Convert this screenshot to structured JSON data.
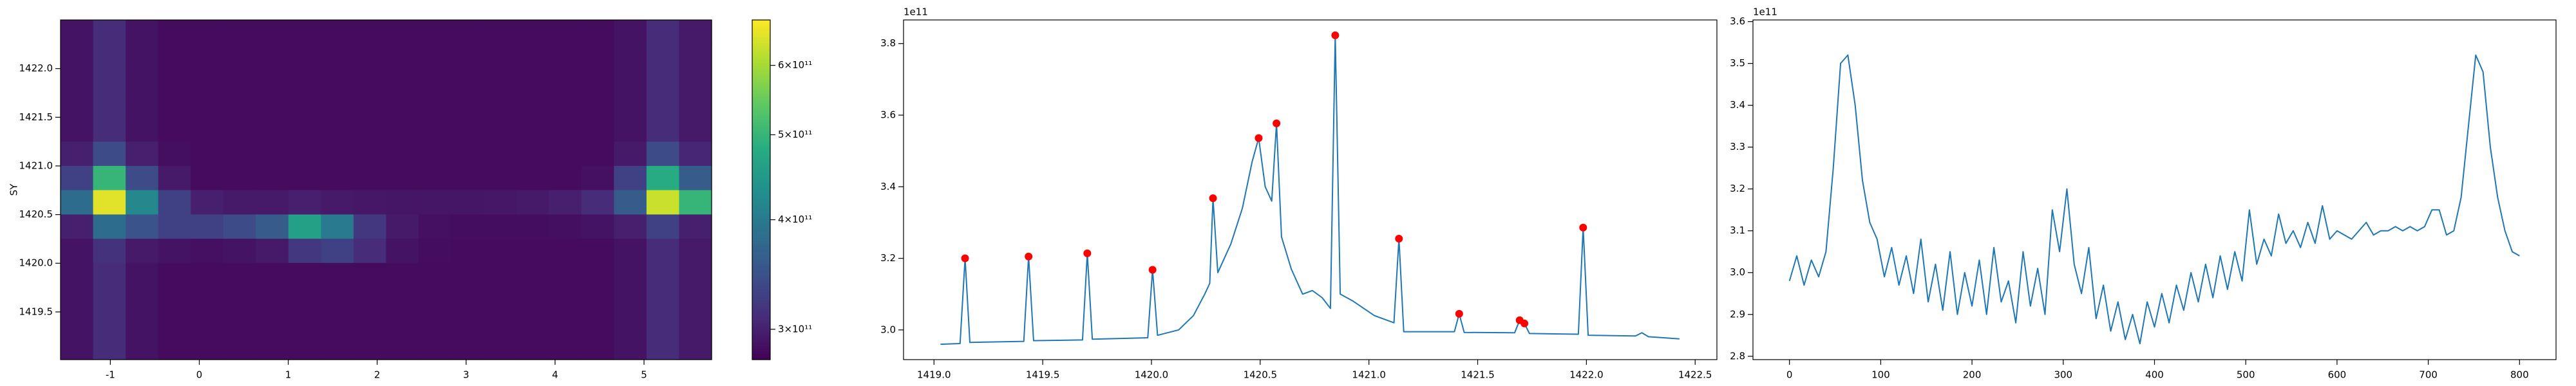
{
  "chart_data": [
    {
      "type": "heatmap",
      "ylabel": "SY",
      "x": [
        -1.377,
        -1.011,
        -0.645,
        -0.279,
        0.087,
        0.453,
        0.819,
        1.185,
        1.551,
        1.917,
        2.283,
        2.649,
        3.015,
        3.381,
        3.747,
        4.113,
        4.479,
        4.845,
        5.211,
        5.577
      ],
      "y": [
        1419.135,
        1419.384,
        1419.634,
        1419.883,
        1420.132,
        1420.381,
        1420.63,
        1420.88,
        1421.129,
        1421.378,
        1421.627,
        1421.877,
        1422.126,
        1422.375
      ],
      "z": [
        [
          290000000000.0,
          310000000000.0,
          290000000000.0,
          285000000000.0,
          285000000000.0,
          285000000000.0,
          285000000000.0,
          285000000000.0,
          285000000000.0,
          285000000000.0,
          285000000000.0,
          285000000000.0,
          285000000000.0,
          285000000000.0,
          285000000000.0,
          285000000000.0,
          285000000000.0,
          290000000000.0,
          310000000000.0,
          295000000000.0
        ],
        [
          290000000000.0,
          310000000000.0,
          290000000000.0,
          285000000000.0,
          285000000000.0,
          285000000000.0,
          285000000000.0,
          285000000000.0,
          285000000000.0,
          285000000000.0,
          285000000000.0,
          285000000000.0,
          285000000000.0,
          285000000000.0,
          285000000000.0,
          285000000000.0,
          285000000000.0,
          290000000000.0,
          310000000000.0,
          295000000000.0
        ],
        [
          290000000000.0,
          310000000000.0,
          290000000000.0,
          285000000000.0,
          285000000000.0,
          285000000000.0,
          285000000000.0,
          285000000000.0,
          285000000000.0,
          285000000000.0,
          285000000000.0,
          285000000000.0,
          285000000000.0,
          285000000000.0,
          285000000000.0,
          285000000000.0,
          285000000000.0,
          290000000000.0,
          310000000000.0,
          295000000000.0
        ],
        [
          290000000000.0,
          310000000000.0,
          290000000000.0,
          285000000000.0,
          285000000000.0,
          285000000000.0,
          285000000000.0,
          285000000000.0,
          285000000000.0,
          285000000000.0,
          285000000000.0,
          285000000000.0,
          285000000000.0,
          285000000000.0,
          285000000000.0,
          285000000000.0,
          285000000000.0,
          290000000000.0,
          310000000000.0,
          295000000000.0
        ],
        [
          290000000000.0,
          315000000000.0,
          295000000000.0,
          290000000000.0,
          288000000000.0,
          290000000000.0,
          295000000000.0,
          320000000000.0,
          330000000000.0,
          310000000000.0,
          290000000000.0,
          286000000000.0,
          285000000000.0,
          285000000000.0,
          285000000000.0,
          285000000000.0,
          285000000000.0,
          290000000000.0,
          310000000000.0,
          295000000000.0
        ],
        [
          300000000000.0,
          380000000000.0,
          350000000000.0,
          330000000000.0,
          330000000000.0,
          340000000000.0,
          360000000000.0,
          460000000000.0,
          400000000000.0,
          320000000000.0,
          295000000000.0,
          288000000000.0,
          286000000000.0,
          286000000000.0,
          286000000000.0,
          287000000000.0,
          290000000000.0,
          300000000000.0,
          330000000000.0,
          300000000000.0
        ],
        [
          380000000000.0,
          650000000000.0,
          420000000000.0,
          330000000000.0,
          300000000000.0,
          295000000000.0,
          295000000000.0,
          300000000000.0,
          295000000000.0,
          293000000000.0,
          292000000000.0,
          292000000000.0,
          292000000000.0,
          293000000000.0,
          295000000000.0,
          300000000000.0,
          310000000000.0,
          360000000000.0,
          630000000000.0,
          500000000000.0
        ],
        [
          330000000000.0,
          500000000000.0,
          340000000000.0,
          295000000000.0,
          285000000000.0,
          285000000000.0,
          285000000000.0,
          285000000000.0,
          285000000000.0,
          285000000000.0,
          285000000000.0,
          285000000000.0,
          285000000000.0,
          285000000000.0,
          285000000000.0,
          285000000000.0,
          288000000000.0,
          330000000000.0,
          480000000000.0,
          360000000000.0
        ],
        [
          300000000000.0,
          340000000000.0,
          300000000000.0,
          287000000000.0,
          285000000000.0,
          285000000000.0,
          285000000000.0,
          285000000000.0,
          285000000000.0,
          285000000000.0,
          285000000000.0,
          285000000000.0,
          285000000000.0,
          285000000000.0,
          285000000000.0,
          285000000000.0,
          285000000000.0,
          295000000000.0,
          340000000000.0,
          305000000000.0
        ],
        [
          290000000000.0,
          310000000000.0,
          290000000000.0,
          285000000000.0,
          285000000000.0,
          285000000000.0,
          285000000000.0,
          285000000000.0,
          285000000000.0,
          285000000000.0,
          285000000000.0,
          285000000000.0,
          285000000000.0,
          285000000000.0,
          285000000000.0,
          285000000000.0,
          285000000000.0,
          290000000000.0,
          310000000000.0,
          295000000000.0
        ],
        [
          290000000000.0,
          310000000000.0,
          290000000000.0,
          285000000000.0,
          285000000000.0,
          285000000000.0,
          285000000000.0,
          285000000000.0,
          285000000000.0,
          285000000000.0,
          285000000000.0,
          285000000000.0,
          285000000000.0,
          285000000000.0,
          285000000000.0,
          285000000000.0,
          285000000000.0,
          290000000000.0,
          310000000000.0,
          295000000000.0
        ],
        [
          290000000000.0,
          310000000000.0,
          290000000000.0,
          285000000000.0,
          285000000000.0,
          285000000000.0,
          285000000000.0,
          285000000000.0,
          285000000000.0,
          285000000000.0,
          285000000000.0,
          285000000000.0,
          285000000000.0,
          285000000000.0,
          285000000000.0,
          285000000000.0,
          285000000000.0,
          290000000000.0,
          310000000000.0,
          295000000000.0
        ],
        [
          290000000000.0,
          310000000000.0,
          290000000000.0,
          285000000000.0,
          285000000000.0,
          285000000000.0,
          285000000000.0,
          285000000000.0,
          285000000000.0,
          285000000000.0,
          285000000000.0,
          285000000000.0,
          285000000000.0,
          285000000000.0,
          285000000000.0,
          285000000000.0,
          285000000000.0,
          290000000000.0,
          310000000000.0,
          295000000000.0
        ],
        [
          290000000000.0,
          310000000000.0,
          290000000000.0,
          285000000000.0,
          285000000000.0,
          285000000000.0,
          285000000000.0,
          285000000000.0,
          285000000000.0,
          285000000000.0,
          285000000000.0,
          285000000000.0,
          285000000000.0,
          285000000000.0,
          285000000000.0,
          285000000000.0,
          285000000000.0,
          290000000000.0,
          310000000000.0,
          295000000000.0
        ]
      ],
      "xlim": [
        -1.56,
        5.76
      ],
      "ylim": [
        1419.01,
        1422.5
      ],
      "xticks": [
        -1,
        0,
        1,
        2,
        3,
        4,
        5
      ],
      "yticks": [
        1419.5,
        {
          "value": 1420,
          "label": "1420.0"
        },
        1420.5,
        {
          "value": 1421,
          "label": "1421.0"
        },
        1421.5,
        {
          "value": 1422,
          "label": "1422.0"
        }
      ],
      "colormap": "viridis",
      "clim": [
        277000000000.0,
        676000000000.0
      ],
      "colorbar_scale": "log",
      "colorbar_ticks": [
        {
          "value": 300000000000.0,
          "label": "3×10¹¹"
        },
        {
          "value": 400000000000.0,
          "label": "4×10¹¹"
        },
        {
          "value": 500000000000.0,
          "label": "5×10¹¹"
        },
        {
          "value": 600000000000.0,
          "label": "6×10¹¹"
        }
      ]
    },
    {
      "type": "line",
      "y_offset_label": "1e11",
      "color": "#1f77b4",
      "x": [
        1419.03,
        1419.12,
        1419.143,
        1419.165,
        1419.413,
        1419.435,
        1419.458,
        1419.683,
        1419.705,
        1419.728,
        1419.983,
        1420.005,
        1420.028,
        1420.125,
        1420.193,
        1420.245,
        1420.268,
        1420.283,
        1420.305,
        1420.365,
        1420.418,
        1420.463,
        1420.493,
        1420.523,
        1420.553,
        1420.575,
        1420.598,
        1420.643,
        1420.695,
        1420.74,
        1420.785,
        1420.823,
        1420.845,
        1420.868,
        1420.928,
        1421.025,
        1421.115,
        1421.138,
        1421.16,
        1421.393,
        1421.415,
        1421.438,
        1421.67,
        1421.693,
        1421.715,
        1421.738,
        1421.963,
        1421.985,
        1422.008,
        1422.225,
        1422.255,
        1422.285,
        1422.428
      ],
      "values": [
        296000000000.0,
        296200000000.0,
        320000000000.0,
        296500000000.0,
        296800000000.0,
        320500000000.0,
        297000000000.0,
        297200000000.0,
        321400000000.0,
        297400000000.0,
        297800000000.0,
        316800000000.0,
        298500000000.0,
        300000000000.0,
        304000000000.0,
        310000000000.0,
        313000000000.0,
        336800000000.0,
        316000000000.0,
        324000000000.0,
        334000000000.0,
        347000000000.0,
        353600000000.0,
        340000000000.0,
        336000000000.0,
        357700000000.0,
        326000000000.0,
        317000000000.0,
        310000000000.0,
        311000000000.0,
        309000000000.0,
        306000000000.0,
        382300000000.0,
        310000000000.0,
        308000000000.0,
        304000000000.0,
        302000000000.0,
        325500000000.0,
        299500000000.0,
        299500000000.0,
        304500000000.0,
        299300000000.0,
        299200000000.0,
        302700000000.0,
        301800000000.0,
        299000000000.0,
        298800000000.0,
        328600000000.0,
        298500000000.0,
        298300000000.0,
        299200000000.0,
        298100000000.0,
        297500000000.0
      ],
      "points": {
        "color": "red",
        "x": [
          1419.143,
          1419.435,
          1419.705,
          1420.005,
          1420.283,
          1420.493,
          1420.575,
          1420.845,
          1421.138,
          1421.415,
          1421.693,
          1421.715,
          1421.985
        ],
        "values": [
          320000000000.0,
          320500000000.0,
          321400000000.0,
          316800000000.0,
          336800000000.0,
          353600000000.0,
          357700000000.0,
          382300000000.0,
          325500000000.0,
          304500000000.0,
          302700000000.0,
          301800000000.0,
          328600000000.0
        ]
      },
      "xlim": [
        1418.86,
        1422.6
      ],
      "ylim": [
        291700000000.0,
        386600000000.0
      ],
      "xticks": [
        {
          "value": 1419,
          "label": "1419.0"
        },
        1419.5,
        {
          "value": 1420,
          "label": "1420.0"
        },
        1420.5,
        {
          "value": 1421,
          "label": "1421.0"
        },
        1421.5,
        {
          "value": 1422,
          "label": "1422.0"
        },
        1422.5
      ],
      "yticks": [
        {
          "value": 300000000000.0,
          "label": "3.0"
        },
        {
          "value": 320000000000.0,
          "label": "3.2"
        },
        {
          "value": 340000000000.0,
          "label": "3.4"
        },
        {
          "value": 360000000000.0,
          "label": "3.6"
        },
        {
          "value": 380000000000.0,
          "label": "3.8"
        }
      ]
    },
    {
      "type": "line",
      "y_offset_label": "1e11",
      "color": "#1f77b4",
      "x": [
        0,
        8,
        16,
        24,
        32,
        40,
        48,
        56,
        64,
        72,
        80,
        88,
        96,
        104,
        112,
        120,
        128,
        136,
        144,
        152,
        160,
        168,
        176,
        184,
        192,
        200,
        208,
        216,
        224,
        232,
        240,
        248,
        256,
        264,
        272,
        280,
        288,
        296,
        304,
        312,
        320,
        328,
        336,
        344,
        352,
        360,
        368,
        376,
        384,
        392,
        400,
        408,
        416,
        424,
        432,
        440,
        448,
        456,
        464,
        472,
        480,
        488,
        496,
        504,
        512,
        520,
        528,
        536,
        544,
        552,
        560,
        568,
        576,
        584,
        592,
        600,
        608,
        616,
        624,
        632,
        640,
        648,
        656,
        664,
        672,
        680,
        688,
        696,
        704,
        712,
        720,
        728,
        736,
        744,
        752,
        760,
        768,
        776,
        784,
        792,
        800
      ],
      "values": [
        298000000000.0,
        304000000000.0,
        297000000000.0,
        303000000000.0,
        299000000000.0,
        305000000000.0,
        325000000000.0,
        350000000000.0,
        352000000000.0,
        340000000000.0,
        322000000000.0,
        312000000000.0,
        308000000000.0,
        299000000000.0,
        306000000000.0,
        297000000000.0,
        304000000000.0,
        295000000000.0,
        308000000000.0,
        293000000000.0,
        302000000000.0,
        291000000000.0,
        305000000000.0,
        290000000000.0,
        300000000000.0,
        292000000000.0,
        303000000000.0,
        290000000000.0,
        306000000000.0,
        293000000000.0,
        298000000000.0,
        288000000000.0,
        305000000000.0,
        292000000000.0,
        301000000000.0,
        290000000000.0,
        315000000000.0,
        305000000000.0,
        320000000000.0,
        302000000000.0,
        295000000000.0,
        306000000000.0,
        289000000000.0,
        297000000000.0,
        286000000000.0,
        293000000000.0,
        284000000000.0,
        290000000000.0,
        283000000000.0,
        293000000000.0,
        287000000000.0,
        295000000000.0,
        288000000000.0,
        297000000000.0,
        291000000000.0,
        300000000000.0,
        293000000000.0,
        302000000000.0,
        294000000000.0,
        304000000000.0,
        296000000000.0,
        305000000000.0,
        298000000000.0,
        315000000000.0,
        302000000000.0,
        308000000000.0,
        304000000000.0,
        314000000000.0,
        307000000000.0,
        310000000000.0,
        306000000000.0,
        312000000000.0,
        307000000000.0,
        316000000000.0,
        308000000000.0,
        310000000000.0,
        309000000000.0,
        308000000000.0,
        310000000000.0,
        312000000000.0,
        309000000000.0,
        310000000000.0,
        310000000000.0,
        311000000000.0,
        310000000000.0,
        311000000000.0,
        310000000000.0,
        311000000000.0,
        315000000000.0,
        315000000000.0,
        309000000000.0,
        310000000000.0,
        318000000000.0,
        335000000000.0,
        352000000000.0,
        348000000000.0,
        330000000000.0,
        318000000000.0,
        310000000000.0,
        305000000000.0,
        304000000000.0
      ],
      "xlim": [
        -40,
        840
      ],
      "ylim": [
        279200000000.0,
        360400000000.0
      ],
      "xticks": [
        0,
        100,
        200,
        300,
        400,
        500,
        600,
        700,
        800
      ],
      "yticks": [
        {
          "value": 280000000000.0,
          "label": "2.8"
        },
        {
          "value": 290000000000.0,
          "label": "2.9"
        },
        {
          "value": 300000000000.0,
          "label": "3.0"
        },
        {
          "value": 310000000000.0,
          "label": "3.1"
        },
        {
          "value": 320000000000.0,
          "label": "3.2"
        },
        {
          "value": 330000000000.0,
          "label": "3.3"
        },
        {
          "value": 340000000000.0,
          "label": "3.4"
        },
        {
          "value": 350000000000.0,
          "label": "3.5"
        },
        {
          "value": 360000000000.0,
          "label": "3.6"
        }
      ]
    }
  ]
}
